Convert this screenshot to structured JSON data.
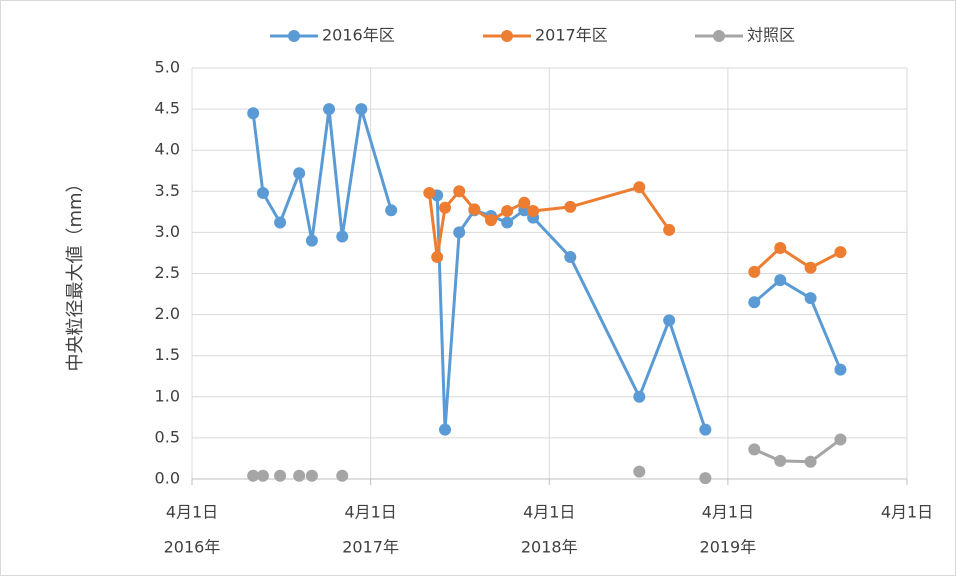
{
  "chart_data": {
    "type": "line",
    "y_label": "中央粒径最大値（mm）",
    "xlim": [
      "2016-04-01",
      "2020-04-01"
    ],
    "xticks": [
      {
        "value": "2016-04-01",
        "label": [
          "4月1日",
          "2016年"
        ]
      },
      {
        "value": "2017-04-01",
        "label": [
          "4月1日",
          "2017年"
        ]
      },
      {
        "value": "2018-04-01",
        "label": [
          "4月1日",
          "2018年"
        ]
      },
      {
        "value": "2019-04-01",
        "label": [
          "4月1日",
          "2019年"
        ]
      },
      {
        "value": "2020-04-01",
        "label": [
          "4月1日"
        ]
      }
    ],
    "ylim": [
      0,
      5
    ],
    "yticks": [
      {
        "value": 0,
        "label": "0.0"
      },
      {
        "value": 0.5,
        "label": "0.5"
      },
      {
        "value": 1,
        "label": "1.0"
      },
      {
        "value": 1.5,
        "label": "1.5"
      },
      {
        "value": 2,
        "label": "2.0"
      },
      {
        "value": 2.5,
        "label": "2.5"
      },
      {
        "value": 3,
        "label": "3.0"
      },
      {
        "value": 3.5,
        "label": "3.5"
      },
      {
        "value": 4,
        "label": "4.0"
      },
      {
        "value": 4.5,
        "label": "4.5"
      },
      {
        "value": 5,
        "label": "5.0"
      }
    ],
    "grid": true,
    "legend": "top",
    "series": [
      {
        "name": "2016年区",
        "color": "#5b9bd5",
        "x": [
          "2016-08-04",
          "2016-08-24",
          "2016-09-28",
          "2016-11-06",
          "2016-12-02",
          "2017-01-06",
          "2017-02-02",
          "2017-03-13",
          "2017-05-13",
          null,
          "2017-08-15",
          "2017-08-31",
          "2017-09-29",
          "2017-10-30",
          "2017-12-03",
          "2018-01-05",
          "2018-02-09",
          "2018-02-27",
          "2018-05-14",
          "2018-10-02",
          "2018-12-02",
          "2019-02-14",
          null,
          "2019-05-25",
          "2019-07-17",
          "2019-09-17",
          "2019-11-17"
        ],
        "values": [
          4.45,
          3.48,
          3.12,
          3.72,
          2.9,
          4.5,
          2.95,
          4.5,
          3.27,
          null,
          3.45,
          0.6,
          3.0,
          3.27,
          3.2,
          3.12,
          3.27,
          3.18,
          2.7,
          1.0,
          1.93,
          0.6,
          null,
          2.15,
          2.42,
          2.2,
          1.33
        ]
      },
      {
        "name": "2017年区",
        "color": "#ed7d31",
        "x": [
          "2017-07-30",
          "2017-08-15",
          "2017-08-31",
          "2017-09-29",
          "2017-10-30",
          "2017-12-03",
          "2018-01-05",
          "2018-02-09",
          "2018-02-27",
          "2018-05-14",
          "2018-10-02",
          "2018-12-02",
          null,
          "2019-05-25",
          "2019-07-17",
          "2019-09-17",
          "2019-11-17"
        ],
        "values": [
          3.48,
          2.7,
          3.3,
          3.5,
          3.28,
          3.15,
          3.26,
          3.36,
          3.26,
          3.31,
          3.55,
          3.03,
          null,
          2.52,
          2.81,
          2.57,
          2.76
        ]
      },
      {
        "name": "対照区",
        "color": "#a5a5a5",
        "x": [
          "2016-08-04",
          null,
          "2016-08-24",
          null,
          "2016-09-28",
          null,
          "2016-11-06",
          null,
          "2016-12-02",
          null,
          "2017-02-02",
          null,
          "2018-10-02",
          null,
          "2019-02-14",
          null,
          "2019-05-25",
          "2019-07-17",
          "2019-09-17",
          "2019-11-17"
        ],
        "values": [
          0.04,
          null,
          0.04,
          null,
          0.04,
          null,
          0.04,
          null,
          0.04,
          null,
          0.04,
          null,
          0.09,
          null,
          0.01,
          null,
          0.36,
          0.22,
          0.21,
          0.48
        ]
      }
    ]
  }
}
